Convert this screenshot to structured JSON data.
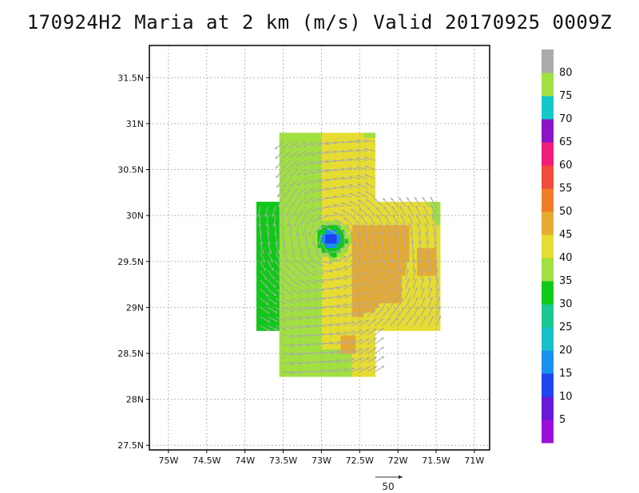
{
  "title": "170924H2 Maria at 2 km (m/s) Valid 20170925 0009Z",
  "colors": {
    "frame": "#000000",
    "grid": "#a0a0a0",
    "vector": "#aaaaaa"
  },
  "map": {
    "lon_range": [
      -75.25,
      -70.8
    ],
    "lat_range": [
      27.45,
      31.85
    ],
    "lon_ticks": [
      -75,
      -74.5,
      -74,
      -73.5,
      -73,
      -72.5,
      -72,
      -71.5,
      -71
    ],
    "lon_tick_labels": [
      "75W",
      "74.5W",
      "74W",
      "73.5W",
      "73W",
      "72.5W",
      "72W",
      "71.5W",
      "71W"
    ],
    "lat_ticks": [
      27.5,
      28,
      28.5,
      29,
      29.5,
      30,
      30.5,
      31,
      31.5
    ],
    "lat_tick_labels": [
      "27.5N",
      "28N",
      "28.5N",
      "29N",
      "29.5N",
      "30N",
      "30.5N",
      "31N",
      "31.5N"
    ],
    "grid": true,
    "storm_center": {
      "lon": -72.87,
      "lat": 29.74
    }
  },
  "reference_vector": {
    "label": "50",
    "value": 50
  },
  "colorbar": {
    "labels": [
      "5",
      "10",
      "15",
      "20",
      "25",
      "30",
      "35",
      "40",
      "45",
      "50",
      "55",
      "60",
      "65",
      "70",
      "75",
      "80"
    ],
    "colors": [
      "#9b0fd8",
      "#6a18d8",
      "#1f44f0",
      "#1890f0",
      "#18c0c8",
      "#18c890",
      "#10c818",
      "#a0e040",
      "#e6dc32",
      "#e6aa32",
      "#f07d28",
      "#f04b3c",
      "#f01e78",
      "#8c14c8",
      "#14c8c8",
      "#a0e040",
      "#aaaaaa"
    ]
  }
}
